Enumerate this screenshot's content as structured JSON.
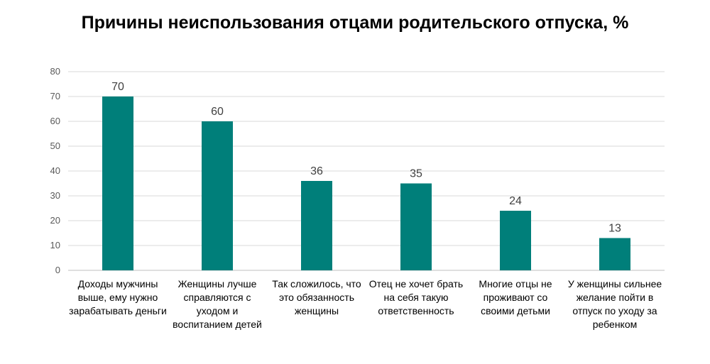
{
  "chart_data": {
    "type": "bar",
    "title": "Причины неиспользования отцами родительского отпуска, %",
    "categories": [
      "Доходы мужчины выше, ему нужно зарабатывать деньги",
      "Женщины лучше справляются с уходом и воспитанием детей",
      "Так сложилось, что это обязанность женщины",
      "Отец не хочет брать на себя такую ответственность",
      "Многие отцы не проживают со своими детьми",
      "У женщины сильнее желание пойти в отпуск по уходу за ребенком"
    ],
    "values": [
      70,
      60,
      36,
      35,
      24,
      13
    ],
    "ylim": [
      0,
      80
    ],
    "yticks": [
      0,
      10,
      20,
      30,
      40,
      50,
      60,
      70,
      80
    ],
    "grid": true,
    "data_labels": true,
    "bar_color": "#007F7A"
  }
}
